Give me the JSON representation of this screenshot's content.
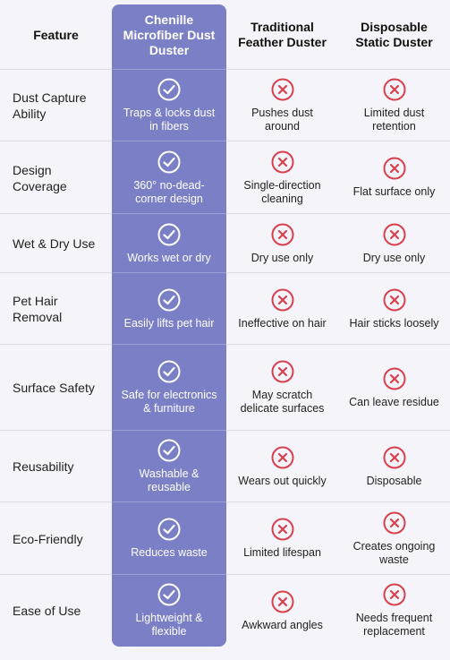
{
  "table": {
    "header": [
      "Feature",
      "Chenille Microfiber Dust Duster",
      "Traditional Feather Duster",
      "Disposable Static Duster"
    ],
    "rows": [
      [
        "Dust Capture Ability",
        "Traps & locks dust in fibers",
        "Pushes dust around",
        "Limited dust retention"
      ],
      [
        "Design Coverage",
        "360° no-dead-corner design",
        "Single-direction cleaning",
        "Flat surface only"
      ],
      [
        "Wet & Dry Use",
        "Works wet or dry",
        "Dry use only",
        "Dry use only"
      ],
      [
        "Pet Hair Removal",
        "Easily lifts pet hair",
        "Ineffective on hair",
        "Hair sticks loosely"
      ],
      [
        "Surface Safety",
        "Safe for electronics & furniture",
        "May scratch delicate surfaces",
        "Can leave residue"
      ],
      [
        "Reusability",
        "Washable & reusable",
        "Wears out quickly",
        "Disposable"
      ],
      [
        "Eco-Friendly",
        "Reduces waste",
        "Limited lifespan",
        "Creates ongoing waste"
      ],
      [
        "Ease of Use",
        "Lightweight & flexible",
        "Awkward angles",
        "Needs frequent replacement"
      ]
    ]
  }
}
